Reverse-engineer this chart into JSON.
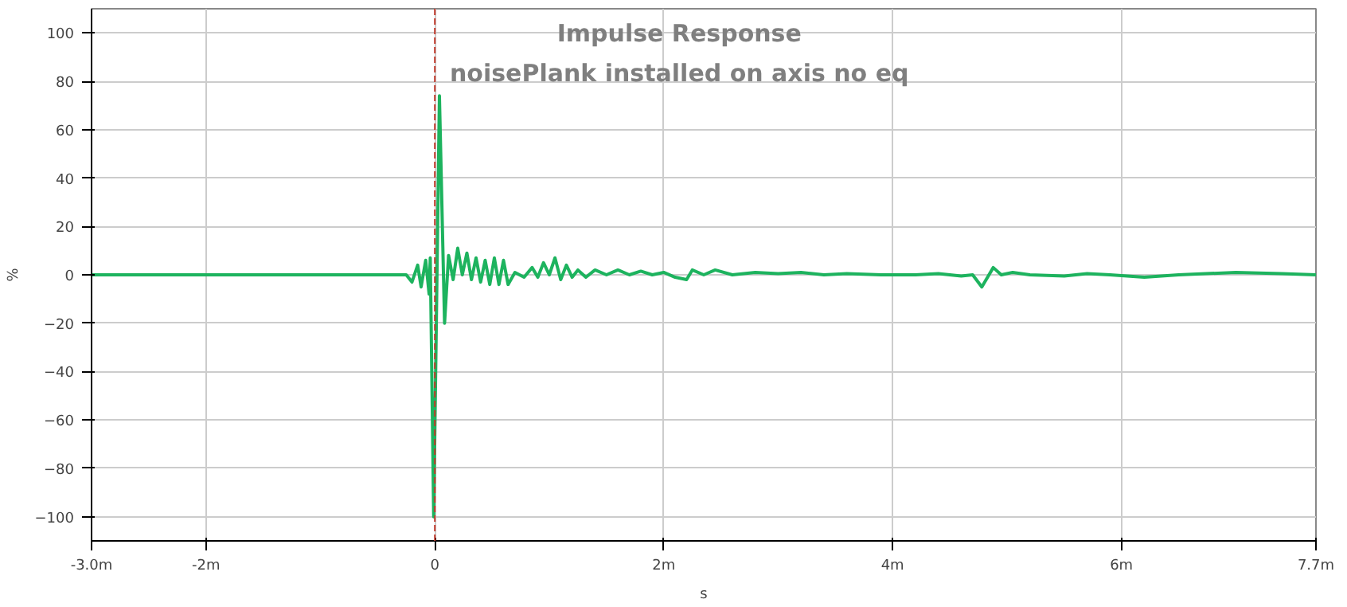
{
  "chart_data": {
    "type": "line",
    "title": "Impulse Response",
    "subtitle": "noisePlank installed on axis no eq",
    "xlabel": "s",
    "ylabel": "%",
    "xlim": [
      -3.0,
      7.7
    ],
    "ylim": [
      -110,
      110
    ],
    "xticks": [
      {
        "value": -3.0,
        "label": "-3.0m"
      },
      {
        "value": -2,
        "label": "-2m"
      },
      0,
      {
        "value": 2,
        "label": "2m"
      },
      {
        "value": 4,
        "label": "4m"
      },
      {
        "value": 6,
        "label": "6m"
      },
      {
        "value": 7.7,
        "label": "7.7m"
      }
    ],
    "yticks": [
      -100,
      -80,
      -60,
      -40,
      -20,
      0,
      20,
      40,
      60,
      80,
      100
    ],
    "grid": true,
    "marker": "none",
    "line_style": "solid",
    "ref_lines": [
      {
        "axis": "x",
        "value": 0,
        "color": "#c0392b",
        "line_style": "dashed"
      }
    ],
    "series": [
      {
        "color": "#1db35e",
        "x": [
          -3.0,
          -0.25,
          -0.2,
          -0.15,
          -0.12,
          -0.08,
          -0.05,
          -0.04,
          -0.01,
          0.04,
          0.085,
          0.12,
          0.16,
          0.2,
          0.24,
          0.28,
          0.32,
          0.36,
          0.4,
          0.44,
          0.48,
          0.52,
          0.56,
          0.6,
          0.64,
          0.7,
          0.78,
          0.85,
          0.9,
          0.95,
          1.0,
          1.05,
          1.1,
          1.15,
          1.2,
          1.25,
          1.32,
          1.4,
          1.5,
          1.6,
          1.7,
          1.8,
          1.9,
          2.0,
          2.1,
          2.2,
          2.25,
          2.35,
          2.45,
          2.6,
          2.8,
          3.0,
          3.2,
          3.4,
          3.6,
          3.9,
          4.2,
          4.4,
          4.6,
          4.7,
          4.78,
          4.88,
          4.95,
          5.05,
          5.2,
          5.5,
          5.7,
          5.9,
          6.2,
          6.5,
          7.0,
          7.4,
          7.7
        ],
        "values": [
          0,
          0,
          -3,
          4,
          -5,
          6,
          -8,
          7,
          -100,
          74,
          -20,
          8,
          -2,
          11,
          0,
          9,
          -2,
          7,
          -3,
          6,
          -4,
          7,
          -4,
          6,
          -4,
          1,
          -1,
          3,
          -1,
          5,
          0,
          7,
          -2,
          4,
          -1,
          2,
          -1,
          2,
          0,
          2,
          0,
          1.5,
          0,
          1,
          -1,
          -2,
          2,
          0,
          2,
          0,
          1,
          0.5,
          1,
          0,
          0.5,
          0,
          0,
          0.5,
          -0.5,
          0,
          -5,
          3,
          0,
          1,
          0,
          -0.5,
          0.5,
          0,
          -1,
          0,
          1,
          0.5,
          0
        ]
      }
    ]
  }
}
